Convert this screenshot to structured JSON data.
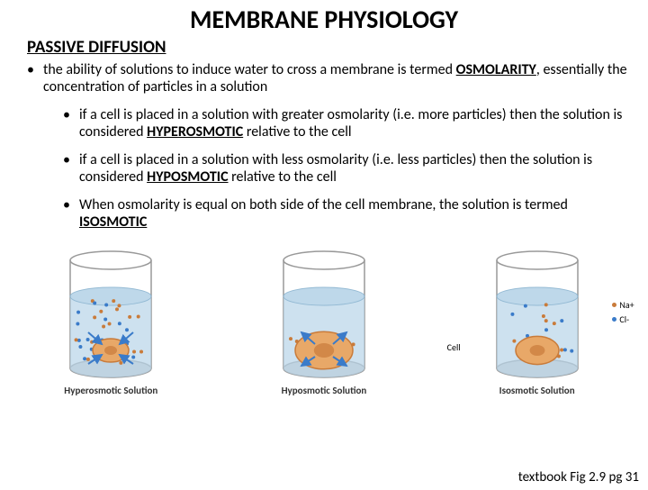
{
  "title": "MEMBRANE PHYSIOLOGY",
  "subtitle": "PASSIVE DIFFUSION",
  "main_bullet": {
    "pre": "the ability of solutions to induce water to cross a membrane is termed ",
    "term": "OSMOLARITY",
    "post": ", essentially the concentration of particles in a solution"
  },
  "sub_bullets": [
    {
      "pre": "if a cell is placed in a solution with greater osmolarity (i.e. more particles) then the solution is considered ",
      "term": "HYPEROSMOTIC",
      "post": " relative to the cell"
    },
    {
      "pre": "if a cell is placed in a solution with less osmolarity (i.e. less particles) then the solution is considered ",
      "term": "HYPOSMOTIC",
      "post": " relative to the cell"
    },
    {
      "pre": "When osmolarity is equal on both side of the cell membrane, the solution is termed ",
      "term": "ISOSMOTIC",
      "post": ""
    }
  ],
  "figure": {
    "captions": [
      "Hyperosmotic Solution",
      "Hyposmotic Solution",
      "Isosmotic Solution"
    ],
    "labels": {
      "na": "Na+",
      "cl": "Cl-",
      "cell": "Cell"
    },
    "colors": {
      "water": "#b8d4e8",
      "glass": "#d0d0d0",
      "glass_edge": "#999",
      "cell_fill": "#e8a868",
      "cell_stroke": "#c97b3a",
      "na_dot": "#c97b3a",
      "cl_dot": "#3a7bc9",
      "arrow": "#3a7bc9"
    },
    "particle_density": {
      "hyper": 36,
      "hypo": 6,
      "iso": 18
    },
    "cell_size": {
      "hyper": 20,
      "hypo": 32,
      "iso": 24
    }
  },
  "credit": "textbook Fig 2.9 pg 31"
}
